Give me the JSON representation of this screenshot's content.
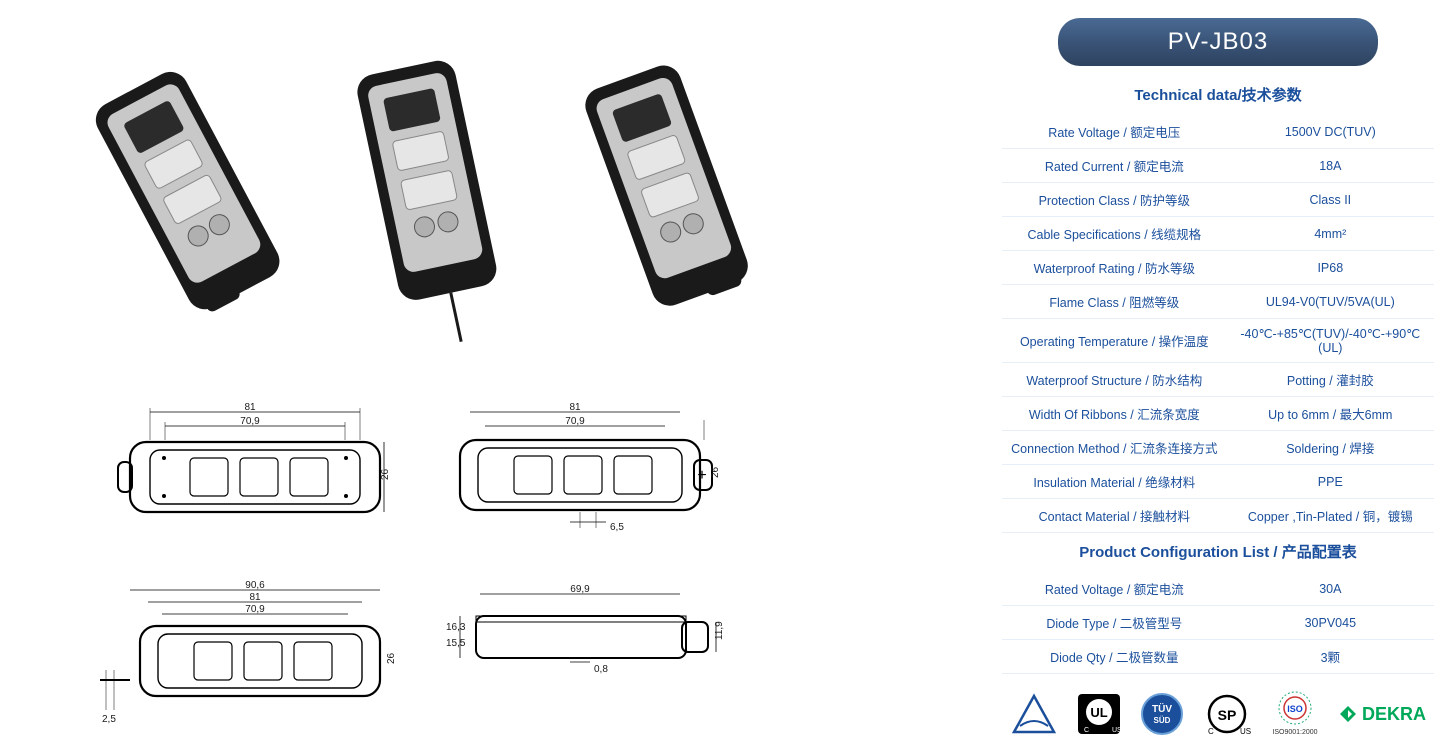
{
  "product": {
    "model": "PV-JB03"
  },
  "sections": {
    "tech_title": "Technical data/技术参数",
    "config_title": "Product Configuration List /  产品配置表"
  },
  "tech_specs": [
    {
      "label": "Rate Voltage / 额定电压",
      "value": "1500V DC(TUV)"
    },
    {
      "label": "Rated  Current  / 额定电流",
      "value": "18A"
    },
    {
      "label": "Protection Class / 防护等级",
      "value": "Class II"
    },
    {
      "label": "Cable Specifications / 线缆规格",
      "value": "4mm²"
    },
    {
      "label": "Waterproof Rating / 防水等级",
      "value": "IP68"
    },
    {
      "label": "Flame Class / 阻燃等级",
      "value": "UL94-V0(TUV/5VA(UL)"
    },
    {
      "label": "Operating Temperature / 操作温度",
      "value": "-40℃-+85℃(TUV)/-40℃-+90℃(UL)"
    },
    {
      "label": "Waterproof Structure / 防水结构",
      "value": "Potting / 灌封胶"
    },
    {
      "label": "Width Of Ribbons / 汇流条宽度",
      "value": "Up to 6mm / 最大6mm"
    },
    {
      "label": "Connection Method / 汇流条连接方式",
      "value": "Soldering / 焊接"
    },
    {
      "label": "Insulation Material / 绝缘材料",
      "value": "PPE"
    },
    {
      "label": "Contact Material / 接触材料",
      "value": "Copper ,Tin-Plated / 铜，镀锡"
    }
  ],
  "config_specs": [
    {
      "label": "Rated Voltage / 额定电流",
      "value": "30A"
    },
    {
      "label": "Diode Type / 二极管型号",
      "value": "30PV045"
    },
    {
      "label": "Diode Qty / 二极管数量",
      "value": "3颗"
    }
  ],
  "dimensions": {
    "top_left": {
      "w1": "81",
      "w2": "70,9",
      "h": "26"
    },
    "top_right": {
      "w1": "81",
      "w2": "70,9",
      "h": "26",
      "gap": "6,5"
    },
    "bot_left": {
      "w1": "90,6",
      "w2": "81",
      "w3": "70,9",
      "h": "26",
      "lead": "2,5"
    },
    "bot_right": {
      "w": "69,9",
      "h1": "16,3",
      "h2": "15,5",
      "h3": "0,8",
      "h4": "11,9"
    }
  },
  "certs": {
    "tuv": "TÜV",
    "ul": "UL",
    "csa": "CSA",
    "iso": "ISO",
    "iso_sub": "ISO9001:2000",
    "dekra": "DEKRA"
  },
  "colors": {
    "brand_blue": "#1b4f9c",
    "pill_grad_top": "#4a6a94",
    "pill_grad_bot": "#2e4360",
    "row_border": "#e6eef7",
    "dekra_green": "#00a859",
    "body_black": "#1a1a1a",
    "metal": "#c8c8c8"
  }
}
